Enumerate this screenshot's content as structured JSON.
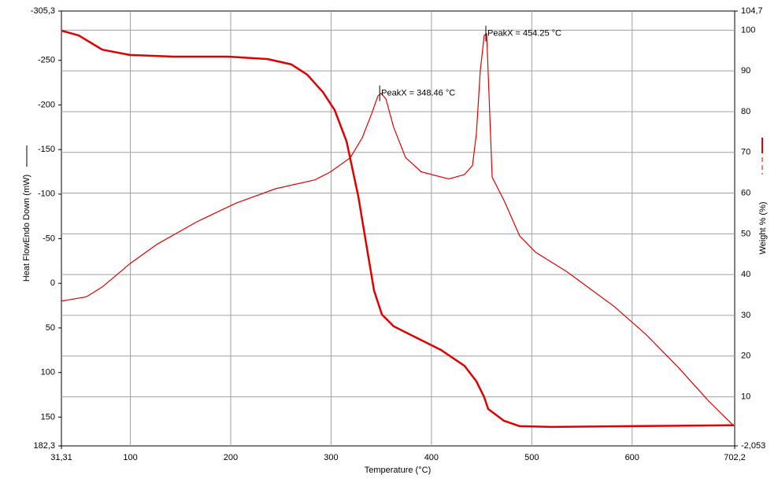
{
  "chart_data": {
    "type": "line",
    "x_label": "Temperature (°C)",
    "y_label": "Heat FlowEndo Down (mW)",
    "y2_label": "Weight % (%)",
    "xlim": [
      31.31,
      702.2
    ],
    "xticks": [
      {
        "value": 31.31,
        "label": "31,31"
      },
      100,
      200,
      300,
      400,
      500,
      600,
      {
        "value": 702.2,
        "label": "702,2"
      }
    ],
    "ylim": [
      182.3,
      -305.3
    ],
    "yticks": [
      {
        "value": -305.3,
        "label": "-305,3"
      },
      -250,
      -200,
      -150,
      -100,
      -50,
      0,
      50,
      100,
      150,
      {
        "value": 182.3,
        "label": "182,3"
      }
    ],
    "y2lim": [
      -2.053,
      104.7
    ],
    "y2ticks": [
      {
        "value": 104.7,
        "label": "104,7"
      },
      100,
      90,
      80,
      70,
      60,
      50,
      40,
      30,
      20,
      10,
      {
        "value": -2.053,
        "label": "-2,053"
      }
    ],
    "grid": true,
    "series": [
      {
        "color": "#e00000",
        "axis": "y",
        "x": [
          31.3,
          56.4,
          72.1,
          99.6,
          127,
          166.3,
          205.5,
          244.7,
          284,
          299.6,
          319.3,
          331,
          340.4,
          346.7,
          349.9,
          354.6,
          362.4,
          374.2,
          389.9,
          417.3,
          433,
          440.9,
          444.8,
          448.7,
          452.6,
          455,
          457.4,
          460.5,
          472.3,
          488,
          503.6,
          535,
          582.1,
          613.5,
          644.9,
          676.3,
          701.4
        ],
        "values": [
          20,
          15,
          4,
          -22,
          -44,
          -69,
          -90,
          -106,
          -116,
          -125,
          -141,
          -163,
          -190,
          -210,
          -213,
          -207,
          -175,
          -141,
          -125,
          -117,
          -122,
          -132,
          -168,
          -238,
          -278,
          -280,
          -212,
          -119,
          -93,
          -53,
          -35,
          -13,
          26,
          57,
          93,
          132,
          160
        ]
      },
      {
        "color": "#e00000",
        "axis": "y2",
        "x": [
          31.3,
          48.6,
          72.1,
          99.6,
          142.7,
          197.6,
          236.9,
          260.4,
          276.1,
          291.8,
          303.6,
          315.4,
          327.1,
          335,
          342.8,
          350.7,
          362.4,
          386,
          409.5,
          433,
          444.8,
          452.6,
          456.6,
          472.3,
          488,
          519.3,
          597.8,
          701.4
        ],
        "values": [
          99.9,
          98.7,
          95.2,
          93.9,
          93.5,
          93.5,
          92.9,
          91.6,
          89.1,
          84.8,
          80.4,
          72.7,
          59.2,
          47.6,
          36.1,
          30.2,
          27.3,
          24.4,
          21.5,
          17.6,
          13.8,
          9.9,
          7,
          4.1,
          2.8,
          2.6,
          2.8,
          3.0
        ]
      }
    ],
    "annotations": [
      {
        "text": "PeakX = 348.46 °C",
        "x": 348.46,
        "y": -213
      },
      {
        "text": "PeakX = 454.25 °C",
        "x": 454.25,
        "y": -280
      }
    ]
  }
}
